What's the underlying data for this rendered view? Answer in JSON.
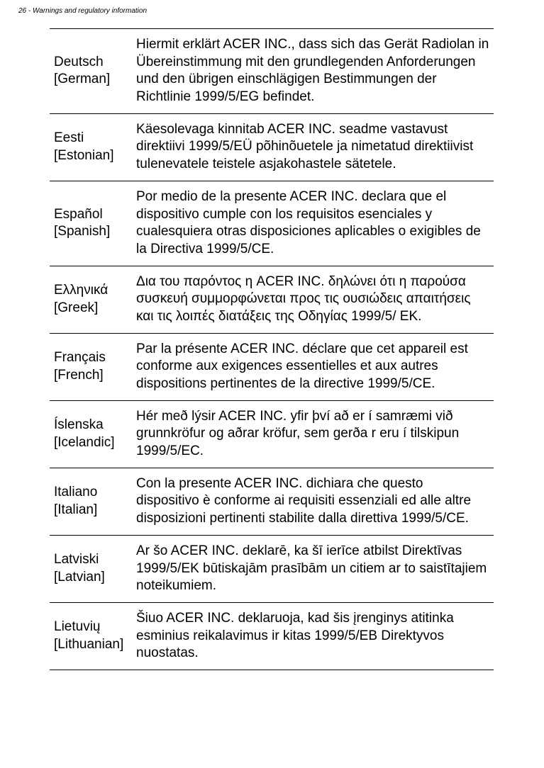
{
  "header": {
    "text": "26 - Warnings and regulatory information"
  },
  "rows": [
    {
      "lang_line1": "Deutsch",
      "lang_line2": "[German]",
      "declaration": "Hiermit erklärt ACER INC., dass sich das Gerät Radiolan in Übereinstimmung mit den grundlegenden Anforderungen und den übrigen einschlägigen Bestimmungen der Richtlinie 1999/5/EG befindet."
    },
    {
      "lang_line1": "Eesti",
      "lang_line2": "[Estonian]",
      "declaration": "Käesolevaga kinnitab ACER INC. seadme vastavust direktiivi 1999/5/EÜ põhinõuetele ja nimetatud direktiivist tulenevatele teistele asjakohastele sätetele."
    },
    {
      "lang_line1": "Español",
      "lang_line2": "[Spanish]",
      "declaration": "Por medio de la presente ACER INC. declara que el dispositivo cumple con los requisitos esenciales y cualesquiera otras disposiciones aplicables o exigibles de la Directiva 1999/5/CE."
    },
    {
      "lang_line1": "Ελληνικά",
      "lang_line2": "[Greek]",
      "declaration": "Δια του παρόντος η ACER INC. δηλώνει ότι η παρούσα συσκευή συμμορφώνεται προς τις ουσιώδεις απαιτήσεις και τις λοιπές διατάξεις της Οδηγίας 1999/5/ ΕΚ."
    },
    {
      "lang_line1": "Français",
      "lang_line2": "[French]",
      "declaration": "Par la présente ACER INC. déclare que cet appareil est conforme aux exigences essentielles et aux autres dispositions pertinentes de la directive 1999/5/CE."
    },
    {
      "lang_line1": "Íslenska",
      "lang_line2": "[Icelandic]",
      "declaration": "Hér með lýsir ACER INC. yfir því að er í samræmi við grunnkröfur og aðrar kröfur, sem gerða r eru í tilskipun 1999/5/EC."
    },
    {
      "lang_line1": "Italiano",
      "lang_line2": "[Italian]",
      "declaration": "Con la presente ACER INC. dichiara che questo dispositivo è conforme ai requisiti essenziali ed alle altre disposizioni pertinenti stabilite dalla direttiva 1999/5/CE."
    },
    {
      "lang_line1": "Latviski",
      "lang_line2": "[Latvian]",
      "declaration": "Ar šo ACER INC. deklarē, ka šī ierīce atbilst Direktīvas 1999/5/EK būtiskajām prasībām un citiem ar to saistītajiem noteikumiem."
    },
    {
      "lang_line1": "Lietuvių",
      "lang_line2": "[Lithuanian]",
      "declaration": "Šiuo ACER INC. deklaruoja, kad šis įrenginys atitinka esminius reikalavimus ir kitas 1999/5/EB Direktyvos nuostatas."
    }
  ]
}
